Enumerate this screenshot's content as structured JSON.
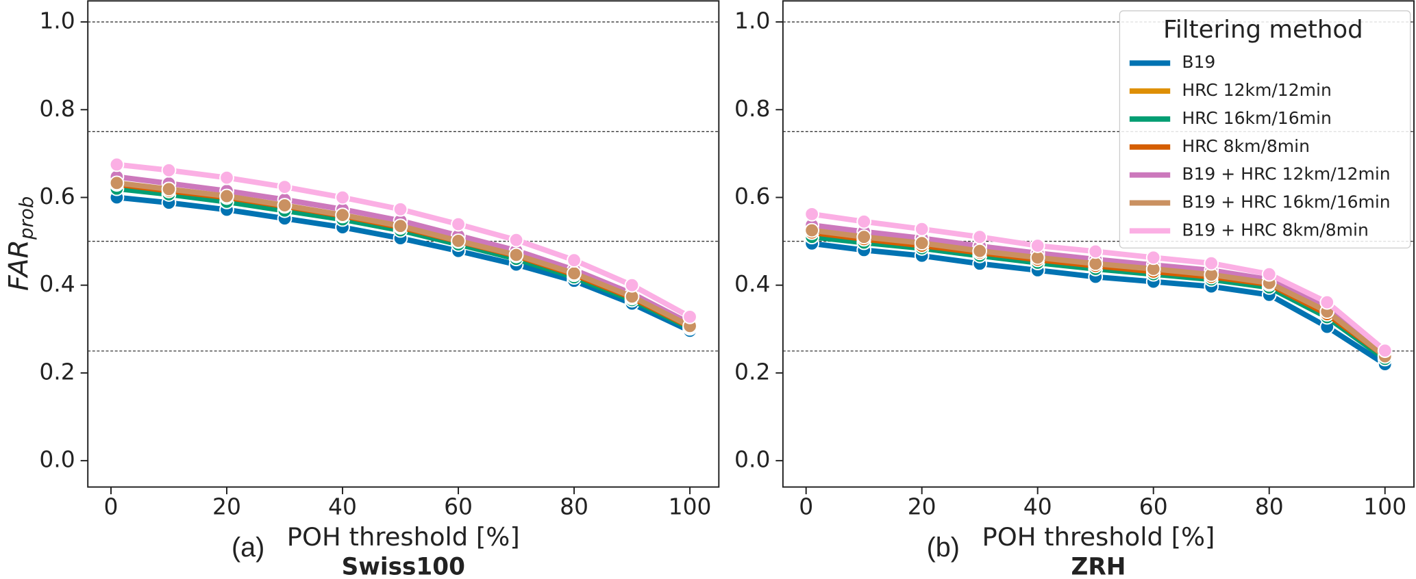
{
  "chart_data": [
    {
      "type": "line",
      "panel": "(a)",
      "xlabel": "POH threshold [%]",
      "subtitle": "Swiss100",
      "ylabel": "FAR",
      "ylabel_sub": "prob",
      "x": [
        1,
        10,
        20,
        30,
        40,
        50,
        60,
        70,
        80,
        90,
        100
      ],
      "xlim": [
        -4,
        105
      ],
      "ylim": [
        -0.06,
        1.05
      ],
      "xticks": [
        0,
        20,
        40,
        60,
        80,
        100
      ],
      "yticks": [
        {
          "value": 0,
          "label": "0.0"
        },
        0.2,
        0.4,
        0.6,
        0.8,
        {
          "value": 1,
          "label": "1.0"
        }
      ],
      "hlines": [
        0.25,
        0.5,
        0.75,
        1.0
      ],
      "series": [
        {
          "name": "B19",
          "color": "#0173b2",
          "values": [
            0.6,
            0.588,
            0.572,
            0.552,
            0.532,
            0.507,
            0.478,
            0.447,
            0.41,
            0.358,
            0.296
          ]
        },
        {
          "name": "HRC 12km/12min",
          "color": "#de8f05",
          "values": [
            0.625,
            0.61,
            0.595,
            0.575,
            0.553,
            0.528,
            0.496,
            0.463,
            0.42,
            0.368,
            0.303
          ]
        },
        {
          "name": "HRC 16km/16min",
          "color": "#029e73",
          "values": [
            0.62,
            0.607,
            0.59,
            0.57,
            0.55,
            0.525,
            0.493,
            0.46,
            0.418,
            0.366,
            0.302
          ]
        },
        {
          "name": "HRC 8km/8min",
          "color": "#d55e00",
          "values": [
            0.63,
            0.615,
            0.6,
            0.58,
            0.558,
            0.532,
            0.5,
            0.467,
            0.424,
            0.371,
            0.305
          ]
        },
        {
          "name": "B19 + HRC 12km/12min",
          "color": "#cc78bc",
          "values": [
            0.647,
            0.632,
            0.615,
            0.595,
            0.573,
            0.547,
            0.513,
            0.479,
            0.435,
            0.381,
            0.313
          ]
        },
        {
          "name": "B19 + HRC 16km/16min",
          "color": "#ca9161",
          "values": [
            0.633,
            0.619,
            0.603,
            0.582,
            0.56,
            0.535,
            0.501,
            0.469,
            0.427,
            0.374,
            0.307
          ]
        },
        {
          "name": "B19 + HRC 8km/8min",
          "color": "#fbafe4",
          "values": [
            0.675,
            0.662,
            0.645,
            0.624,
            0.6,
            0.573,
            0.539,
            0.503,
            0.457,
            0.4,
            0.328
          ]
        }
      ]
    },
    {
      "type": "line",
      "panel": "(b)",
      "xlabel": "POH threshold [%]",
      "subtitle": "ZRH",
      "legend": "upper right",
      "legend_title": "Filtering method",
      "x": [
        1,
        10,
        20,
        30,
        40,
        50,
        60,
        70,
        80,
        90,
        100
      ],
      "xlim": [
        -4,
        105
      ],
      "ylim": [
        -0.06,
        1.05
      ],
      "xticks": [
        0,
        20,
        40,
        60,
        80,
        100
      ],
      "yticks": [
        {
          "value": 0,
          "label": "0.0"
        },
        0.2,
        0.4,
        0.6,
        0.8,
        {
          "value": 1,
          "label": "1.0"
        }
      ],
      "hlines": [
        0.25,
        0.5,
        0.75,
        1.0
      ],
      "series": [
        {
          "name": "B19",
          "color": "#0173b2",
          "values": [
            0.495,
            0.48,
            0.467,
            0.449,
            0.434,
            0.419,
            0.408,
            0.397,
            0.378,
            0.305,
            0.22
          ]
        },
        {
          "name": "HRC 12km/12min",
          "color": "#de8f05",
          "values": [
            0.515,
            0.5,
            0.487,
            0.47,
            0.454,
            0.44,
            0.428,
            0.415,
            0.398,
            0.33,
            0.235
          ]
        },
        {
          "name": "HRC 16km/16min",
          "color": "#029e73",
          "values": [
            0.51,
            0.497,
            0.484,
            0.467,
            0.451,
            0.437,
            0.425,
            0.413,
            0.395,
            0.327,
            0.232
          ]
        },
        {
          "name": "HRC 8km/8min",
          "color": "#d55e00",
          "values": [
            0.52,
            0.505,
            0.49,
            0.474,
            0.458,
            0.444,
            0.431,
            0.419,
            0.402,
            0.334,
            0.238
          ]
        },
        {
          "name": "B19 + HRC 12km/12min",
          "color": "#cc78bc",
          "values": [
            0.537,
            0.522,
            0.507,
            0.489,
            0.473,
            0.459,
            0.446,
            0.434,
            0.413,
            0.347,
            0.242
          ]
        },
        {
          "name": "B19 + HRC 16km/16min",
          "color": "#ca9161",
          "values": [
            0.525,
            0.51,
            0.496,
            0.478,
            0.463,
            0.449,
            0.437,
            0.424,
            0.405,
            0.34,
            0.238
          ]
        },
        {
          "name": "B19 + HRC 8km/8min",
          "color": "#fbafe4",
          "values": [
            0.562,
            0.545,
            0.528,
            0.51,
            0.49,
            0.477,
            0.463,
            0.45,
            0.425,
            0.361,
            0.251
          ]
        }
      ]
    }
  ]
}
